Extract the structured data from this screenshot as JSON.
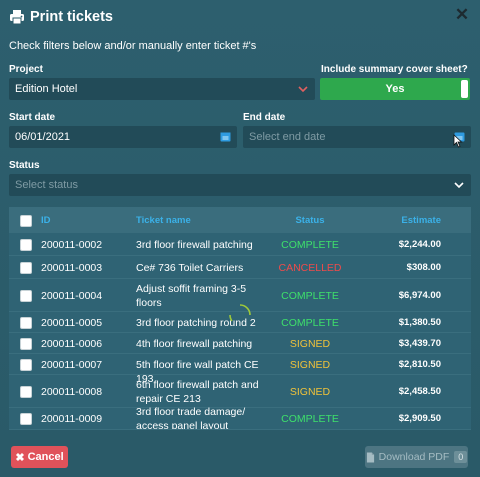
{
  "dialog": {
    "title": "Print tickets",
    "close_glyph": "✕",
    "subtitle": "Check filters below and/or manually enter ticket #'s"
  },
  "filters": {
    "project_label": "Project",
    "project_value": "Edition Hotel",
    "summary_label": "Include summary cover sheet?",
    "summary_value": "Yes",
    "start_date_label": "Start date",
    "start_date_value": "06/01/2021",
    "end_date_label": "End date",
    "end_date_placeholder": "Select end date",
    "status_label": "Status",
    "status_placeholder": "Select status"
  },
  "table": {
    "headers": {
      "id": "ID",
      "name": "Ticket name",
      "status": "Status",
      "estimate": "Estimate"
    },
    "rows": [
      {
        "id": "200011-0002",
        "name": "3rd floor firewall patching",
        "status": "COMPLETE",
        "estimate": "$2,244.00"
      },
      {
        "id": "200011-0003",
        "name": "Ce# 736 Toilet Carriers",
        "status": "CANCELLED",
        "estimate": "$308.00"
      },
      {
        "id": "200011-0004",
        "name": "Adjust soffit framing 3-5 floors",
        "status": "COMPLETE",
        "estimate": "$6,974.00"
      },
      {
        "id": "200011-0005",
        "name": "3rd floor patching round 2",
        "status": "COMPLETE",
        "estimate": "$1,380.50"
      },
      {
        "id": "200011-0006",
        "name": "4th floor firewall patching",
        "status": "SIGNED",
        "estimate": "$3,439.70"
      },
      {
        "id": "200011-0007",
        "name": "5th floor fire wall patch CE 193",
        "status": "SIGNED",
        "estimate": "$2,810.50"
      },
      {
        "id": "200011-0008",
        "name": "6th floor firewall patch and repair CE 213",
        "status": "SIGNED",
        "estimate": "$2,458.50"
      },
      {
        "id": "200011-0009",
        "name": "3rd floor trade damage/ access panel layout",
        "status": "COMPLETE",
        "estimate": "$2,909.50"
      }
    ]
  },
  "status_colors": {
    "COMPLETE": "#3ee06b",
    "CANCELLED": "#ef4b4b",
    "SIGNED": "#f0c23a"
  },
  "footer": {
    "cancel_label": "Cancel",
    "cancel_icon": "x-icon",
    "download_label": "Download PDF",
    "download_icon": "file-pdf-icon",
    "download_count": "0"
  },
  "colors": {
    "background": "#2b5b6a",
    "toggle_on": "#2ea84d",
    "cancel": "#e0525a",
    "header_text": "#3bb1e8"
  }
}
